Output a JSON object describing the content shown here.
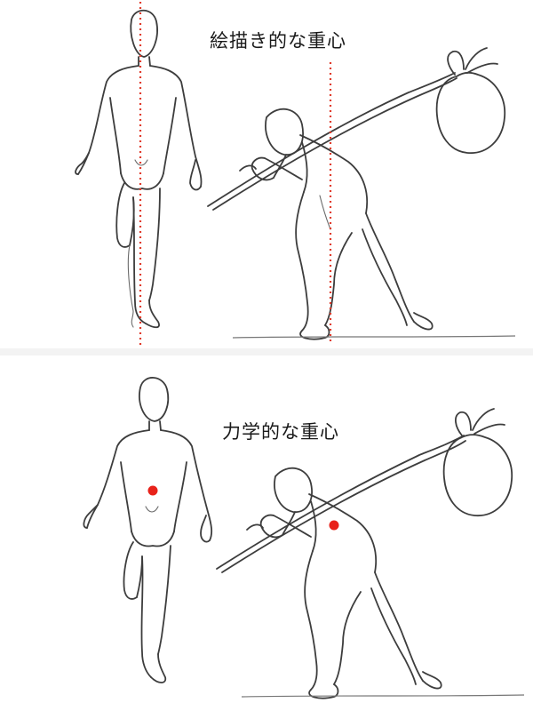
{
  "panels": [
    {
      "title": "絵描き的な重心",
      "marker": "dotted-line",
      "marker_color": "#e03a2a"
    },
    {
      "title": "力学的な重心",
      "marker": "dot",
      "marker_color": "#e8221a"
    }
  ]
}
